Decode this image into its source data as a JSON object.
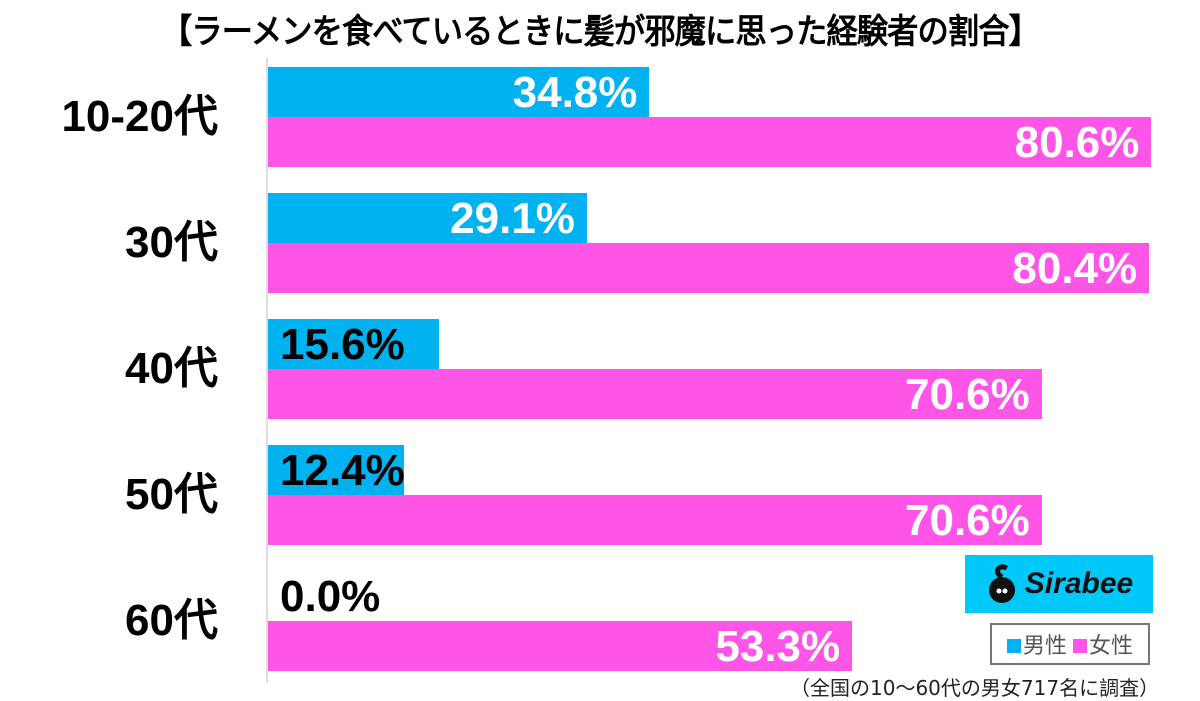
{
  "chart_data": {
    "type": "bar",
    "orientation": "horizontal",
    "title": "【ラーメンを食べているときに髪が邪魔に思った経験者の割合】",
    "categories": [
      "10-20代",
      "30代",
      "40代",
      "50代",
      "60代"
    ],
    "series": [
      {
        "name": "男性",
        "color": "#00b2ef",
        "values": [
          34.8,
          29.1,
          15.6,
          12.4,
          0.0
        ]
      },
      {
        "name": "女性",
        "color": "#ff55e6",
        "values": [
          80.6,
          80.4,
          70.6,
          70.6,
          53.3
        ]
      }
    ],
    "value_labels": {
      "male": [
        "34.8%",
        "29.1%",
        "15.6%",
        "12.4%",
        "0.0%"
      ],
      "female": [
        "80.6%",
        "80.4%",
        "70.6%",
        "70.6%",
        "53.3%"
      ]
    },
    "xlabel": "",
    "ylabel": "",
    "grid": false,
    "legend_position": "bottom-right",
    "unit": "%"
  },
  "legend": {
    "male": "男性",
    "female": "女性"
  },
  "logo": {
    "text": "Sirabee"
  },
  "footnote": "（全国の10〜60代の男女717名に調査）"
}
